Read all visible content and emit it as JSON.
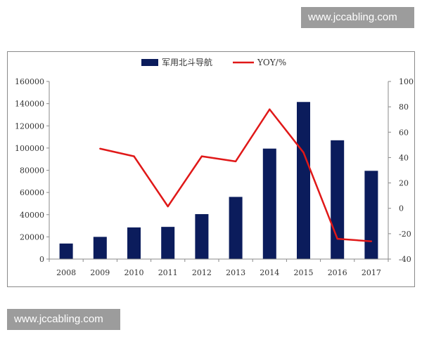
{
  "watermark_top": "www.jccabling.com",
  "watermark_bottom": "www.jccabling.com",
  "colors": {
    "bar": "#0b1c5c",
    "line": "#e01818",
    "axis": "#8a8a8a",
    "text": "#333333"
  },
  "chart_data": {
    "type": "bar",
    "categories": [
      "2008",
      "2009",
      "2010",
      "2011",
      "2012",
      "2013",
      "2014",
      "2015",
      "2016",
      "2017"
    ],
    "series": [
      {
        "name": "军用北斗导航",
        "type": "bar",
        "axis": "left",
        "values": [
          14000,
          20000,
          28500,
          29000,
          40500,
          56000,
          99500,
          141500,
          107000,
          79500
        ]
      },
      {
        "name": "YOY/%",
        "type": "line",
        "axis": "right",
        "values": [
          null,
          47,
          41,
          1.5,
          41,
          37,
          78,
          44,
          -24,
          -26
        ]
      }
    ],
    "ylim_left": [
      0,
      160000
    ],
    "yticks_left": [
      "0",
      "20000",
      "40000",
      "60000",
      "80000",
      "100000",
      "120000",
      "140000",
      "160000"
    ],
    "ylim_right": [
      -40,
      100
    ],
    "yticks_right": [
      "-40",
      "-20",
      "0",
      "20",
      "40",
      "60",
      "80",
      "100"
    ],
    "legend": "top-center",
    "grid": false
  }
}
